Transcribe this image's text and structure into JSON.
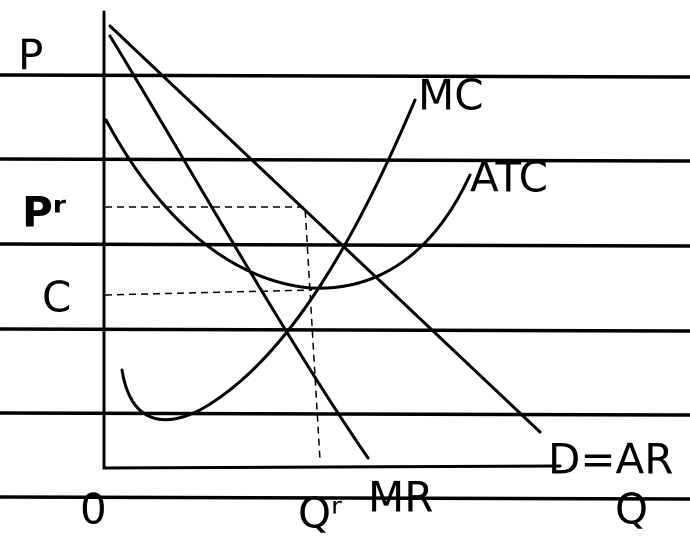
{
  "axes": {
    "y_label": "P",
    "x_label": "Q",
    "origin": "0"
  },
  "price_label": "Pʳ",
  "cost_label": "C",
  "quantity_label": "Qʳ",
  "curves": {
    "mc": "MC",
    "atc": "ATC",
    "demand": "D=AR",
    "mr": "MR"
  }
}
